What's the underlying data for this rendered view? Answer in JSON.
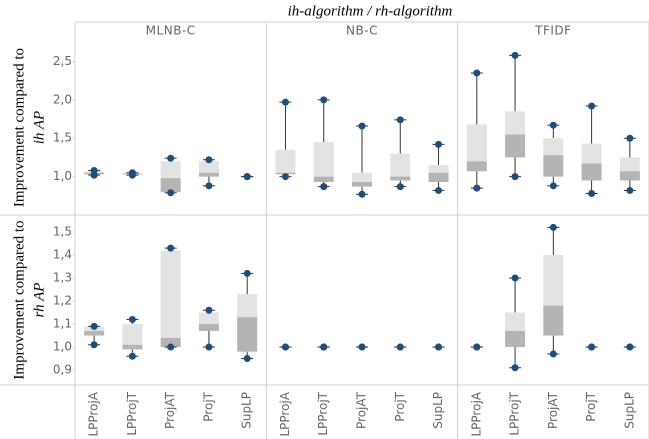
{
  "chart_data": {
    "type": "box",
    "title": "ih-algorithm / rh-algorithm",
    "columns": [
      "MLNB-C",
      "NB-C",
      "TFIDF"
    ],
    "categories": [
      "LPProjA",
      "LPProjT",
      "ProjAT",
      "ProjT",
      "SupLP"
    ],
    "rows": [
      {
        "ylabel": [
          "Improvement compared to",
          "ih AP"
        ],
        "ylim": [
          0.5,
          2.78
        ],
        "yticks": [
          {
            "value": 1.0,
            "label": "1,0"
          },
          {
            "value": 1.5,
            "label": "1,5"
          },
          {
            "value": 2.0,
            "label": "2,0"
          },
          {
            "value": 2.5,
            "label": "2,5"
          }
        ],
        "panels": [
          [
            {
              "min": 1.02,
              "q1": 1.03,
              "median": 1.05,
              "q3": 1.07,
              "max": 1.08
            },
            {
              "min": 1.02,
              "q1": 1.03,
              "median": 1.04,
              "q3": 1.05,
              "max": 1.05
            },
            {
              "min": 0.79,
              "q1": 0.8,
              "median": 0.98,
              "q3": 1.2,
              "max": 1.24
            },
            {
              "min": 0.88,
              "q1": 1.0,
              "median": 1.05,
              "q3": 1.2,
              "max": 1.22
            },
            {
              "min": 1.0,
              "q1": 1.0,
              "median": 1.0,
              "q3": 1.0,
              "max": 1.0
            }
          ],
          [
            {
              "min": 1.0,
              "q1": 1.03,
              "median": 1.05,
              "q3": 1.35,
              "max": 1.97
            },
            {
              "min": 0.87,
              "q1": 0.93,
              "median": 1.0,
              "q3": 1.45,
              "max": 2.0
            },
            {
              "min": 0.77,
              "q1": 0.87,
              "median": 0.93,
              "q3": 1.05,
              "max": 1.66
            },
            {
              "min": 0.87,
              "q1": 0.95,
              "median": 1.0,
              "q3": 1.3,
              "max": 1.74
            },
            {
              "min": 0.82,
              "q1": 0.93,
              "median": 1.05,
              "q3": 1.15,
              "max": 1.42
            }
          ],
          [
            {
              "min": 0.85,
              "q1": 1.07,
              "median": 1.2,
              "q3": 1.68,
              "max": 2.35
            },
            {
              "min": 1.0,
              "q1": 1.25,
              "median": 1.55,
              "q3": 1.85,
              "max": 2.58
            },
            {
              "min": 0.88,
              "q1": 1.0,
              "median": 1.28,
              "q3": 1.5,
              "max": 1.67
            },
            {
              "min": 0.78,
              "q1": 0.95,
              "median": 1.17,
              "q3": 1.43,
              "max": 1.92
            },
            {
              "min": 0.82,
              "q1": 0.95,
              "median": 1.07,
              "q3": 1.25,
              "max": 1.5
            }
          ]
        ]
      },
      {
        "ylabel": [
          "Improvement compared to",
          "rh AP"
        ],
        "ylim": [
          0.835,
          1.574
        ],
        "yticks": [
          {
            "value": 0.9,
            "label": "0,9"
          },
          {
            "value": 1.0,
            "label": "1,0"
          },
          {
            "value": 1.1,
            "label": "1,1"
          },
          {
            "value": 1.2,
            "label": "1,2"
          },
          {
            "value": 1.3,
            "label": "1,3"
          },
          {
            "value": 1.4,
            "label": "1,4"
          },
          {
            "value": 1.5,
            "label": "1,5"
          }
        ],
        "panels": [
          [
            {
              "min": 1.01,
              "q1": 1.05,
              "median": 1.07,
              "q3": 1.09,
              "max": 1.09
            },
            {
              "min": 0.96,
              "q1": 0.99,
              "median": 1.01,
              "q3": 1.1,
              "max": 1.12
            },
            {
              "min": 1.0,
              "q1": 1.0,
              "median": 1.04,
              "q3": 1.42,
              "max": 1.43
            },
            {
              "min": 1.0,
              "q1": 1.07,
              "median": 1.1,
              "q3": 1.15,
              "max": 1.16
            },
            {
              "min": 0.95,
              "q1": 0.98,
              "median": 1.13,
              "q3": 1.23,
              "max": 1.32
            }
          ],
          [
            {
              "min": 1.0,
              "q1": 1.0,
              "median": 1.0,
              "q3": 1.0,
              "max": 1.0
            },
            {
              "min": 1.0,
              "q1": 1.0,
              "median": 1.0,
              "q3": 1.0,
              "max": 1.0
            },
            {
              "min": 1.0,
              "q1": 1.0,
              "median": 1.0,
              "q3": 1.0,
              "max": 1.0
            },
            {
              "min": 1.0,
              "q1": 1.0,
              "median": 1.0,
              "q3": 1.0,
              "max": 1.0
            },
            {
              "min": 1.0,
              "q1": 1.0,
              "median": 1.0,
              "q3": 1.0,
              "max": 1.0
            }
          ],
          [
            {
              "min": 1.0,
              "q1": 1.0,
              "median": 1.0,
              "q3": 1.0,
              "max": 1.0
            },
            {
              "min": 0.91,
              "q1": 1.0,
              "median": 1.07,
              "q3": 1.15,
              "max": 1.3
            },
            {
              "min": 0.97,
              "q1": 1.05,
              "median": 1.18,
              "q3": 1.4,
              "max": 1.52
            },
            {
              "min": 1.0,
              "q1": 1.0,
              "median": 1.0,
              "q3": 1.0,
              "max": 1.0
            },
            {
              "min": 1.0,
              "q1": 1.0,
              "median": 1.0,
              "q3": 1.0,
              "max": 1.0
            }
          ]
        ]
      }
    ],
    "colors": {
      "upper": "#e3e3e3",
      "lower": "#b4b4b4",
      "whisker": "#333333",
      "point": "#1f4e79"
    }
  }
}
